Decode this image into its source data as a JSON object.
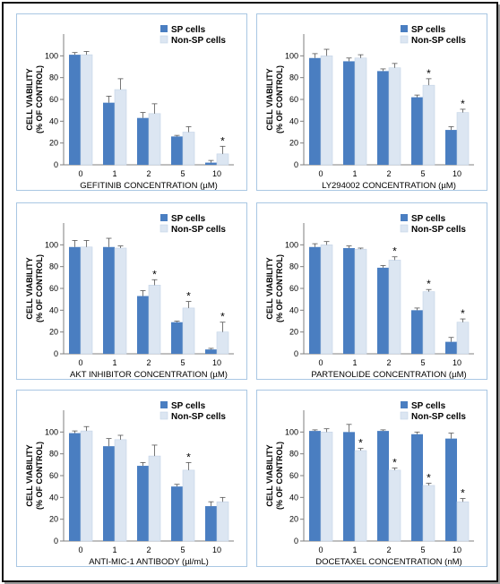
{
  "colors": {
    "sp": "#4a7ec1",
    "non_sp": "#dce6f2",
    "non_sp_edge": "#c4d3e6",
    "axis": "#7f7f7f",
    "panel_border": "#a9c7e3"
  },
  "chart_data": [
    {
      "type": "bar",
      "categories": [
        "0",
        "1",
        "2",
        "5",
        "10"
      ],
      "series": [
        {
          "name": "SP cells",
          "values": [
            101,
            57,
            43,
            26,
            2
          ],
          "errors": [
            2,
            6,
            5,
            1,
            2
          ]
        },
        {
          "name": "Non-SP cells",
          "values": [
            101,
            69,
            47,
            30,
            10
          ],
          "errors": [
            3,
            10,
            9,
            5,
            7
          ]
        }
      ],
      "significant": [
        false,
        false,
        false,
        false,
        true
      ],
      "ylabel_line1": "CELL VIABILITY",
      "ylabel_line2": "(% OF CONTROL)",
      "xlabel": "GEFITINIB CONCENTRATION  (µM)",
      "ylim": [
        0,
        120
      ],
      "yticks": [
        "0",
        "20",
        "40",
        "60",
        "80",
        "100"
      ],
      "legend": "top-right",
      "grid": false
    },
    {
      "type": "bar",
      "categories": [
        "0",
        "1",
        "2",
        "5",
        "10"
      ],
      "series": [
        {
          "name": "SP cells",
          "values": [
            98,
            95,
            86,
            62,
            32
          ],
          "errors": [
            4,
            3,
            2,
            2,
            3
          ]
        },
        {
          "name": "Non-SP cells",
          "values": [
            100,
            98,
            89,
            73,
            48
          ],
          "errors": [
            6,
            3,
            4,
            6,
            3
          ]
        }
      ],
      "significant": [
        false,
        false,
        false,
        true,
        true
      ],
      "ylabel_line1": "CELL VIABILITY",
      "ylabel_line2": "(% OF CONTROL)",
      "xlabel": "LY294002  CONCENTRATION  (µM)",
      "ylim": [
        0,
        120
      ],
      "yticks": [
        "0",
        "20",
        "40",
        "60",
        "80",
        "100"
      ],
      "legend": "top-right",
      "grid": false
    },
    {
      "type": "bar",
      "categories": [
        "0",
        "1",
        "2",
        "5",
        "10"
      ],
      "series": [
        {
          "name": "SP cells",
          "values": [
            98,
            98,
            53,
            29,
            4
          ],
          "errors": [
            6,
            8,
            5,
            1,
            1
          ]
        },
        {
          "name": "Non-SP cells",
          "values": [
            98,
            97,
            63,
            42,
            20
          ],
          "errors": [
            6,
            2,
            5,
            6,
            9
          ]
        }
      ],
      "significant": [
        false,
        false,
        true,
        true,
        true
      ],
      "ylabel_line1": "CELL VIABILITY",
      "ylabel_line2": "(% OF CONTROL)",
      "xlabel": "AKT INHIBITOR  CONCENTRATION  (µM)",
      "ylim": [
        0,
        120
      ],
      "yticks": [
        "0",
        "20",
        "40",
        "60",
        "80",
        "100"
      ],
      "legend": "top-right",
      "grid": false
    },
    {
      "type": "bar",
      "categories": [
        "0",
        "1",
        "2",
        "5",
        "10"
      ],
      "series": [
        {
          "name": "SP cells",
          "values": [
            98,
            97,
            79,
            40,
            11
          ],
          "errors": [
            3,
            2,
            2,
            2,
            4
          ]
        },
        {
          "name": "Non-SP cells",
          "values": [
            100,
            96,
            86,
            57,
            29
          ],
          "errors": [
            3,
            1,
            3,
            2,
            3
          ]
        }
      ],
      "significant": [
        false,
        false,
        true,
        true,
        true
      ],
      "ylabel_line1": "CELL VIABILITY",
      "ylabel_line2": "(% OF CONTROL)",
      "xlabel": "PARTENOLIDE  CONCENTRATION  (µM)",
      "ylim": [
        0,
        120
      ],
      "yticks": [
        "0",
        "20",
        "40",
        "60",
        "80",
        "100"
      ],
      "legend": "top-right",
      "grid": false
    },
    {
      "type": "bar",
      "categories": [
        "0",
        "1",
        "2",
        "5",
        "10"
      ],
      "series": [
        {
          "name": "SP cells",
          "values": [
            99,
            87,
            69,
            50,
            32
          ],
          "errors": [
            2,
            7,
            3,
            2,
            4
          ]
        },
        {
          "name": "Non-SP cells",
          "values": [
            101,
            93,
            78,
            65,
            36
          ],
          "errors": [
            4,
            4,
            10,
            7,
            4
          ]
        }
      ],
      "significant": [
        false,
        false,
        false,
        true,
        false
      ],
      "ylabel_line1": "CELL VIABILITY",
      "ylabel_line2": "(% OF CONTROL)",
      "xlabel": "ANTI-MIC-1  ANTIBODY  (µl/mL)",
      "ylim": [
        0,
        120
      ],
      "yticks": [
        "0",
        "20",
        "40",
        "60",
        "80",
        "100"
      ],
      "legend": "top-right",
      "grid": false
    },
    {
      "type": "bar",
      "categories": [
        "0",
        "1",
        "2",
        "5",
        "10"
      ],
      "series": [
        {
          "name": "SP cells",
          "values": [
            101,
            100,
            101,
            98,
            94
          ],
          "errors": [
            1,
            7,
            1,
            2,
            5
          ]
        },
        {
          "name": "Non-SP cells",
          "values": [
            100,
            83,
            65,
            51,
            36
          ],
          "errors": [
            3,
            2,
            2,
            2,
            3
          ]
        }
      ],
      "significant": [
        false,
        true,
        true,
        true,
        true
      ],
      "ylabel_line1": "CELL VIABILITY",
      "ylabel_line2": "(% OF CONTROL)",
      "xlabel": "DOCETAXEL  CONCENTRATION  (nM)",
      "ylim": [
        0,
        120
      ],
      "yticks": [
        "0",
        "20",
        "40",
        "60",
        "80",
        "100"
      ],
      "legend": "top-right",
      "grid": false
    }
  ]
}
